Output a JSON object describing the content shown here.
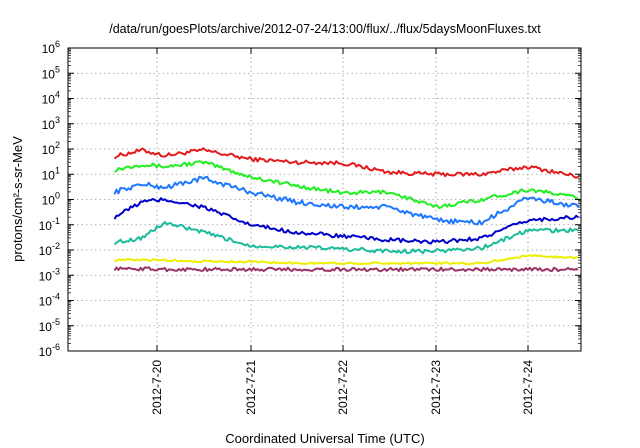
{
  "chart_data": {
    "type": "line",
    "title": "/data/run/goesPlots/archive/2012-07-24/13:00/flux/../flux/5daysMoonFluxes.txt",
    "xlabel": "Coordinated Universal Time (UTC)",
    "ylabel": "protons/cm²-s-sr-MeV",
    "y_scale": "log",
    "ylim": [
      1e-06,
      1000000.0
    ],
    "xlim_days": [
      "2012-07-19 13:00",
      "2012-07-24 13:00"
    ],
    "grid": true,
    "legend": "none",
    "x_ticks": [
      "2012-7-20",
      "2012-7-21",
      "2012-7-22",
      "2012-7-23",
      "2012-7-24"
    ],
    "y_ticks": [
      {
        "base": "10",
        "exp": "-6"
      },
      {
        "base": "10",
        "exp": "-5"
      },
      {
        "base": "10",
        "exp": "-4"
      },
      {
        "base": "10",
        "exp": "-3"
      },
      {
        "base": "10",
        "exp": "-2"
      },
      {
        "base": "10",
        "exp": "-1"
      },
      {
        "base": "10",
        "exp": "0"
      },
      {
        "base": "10",
        "exp": "1"
      },
      {
        "base": "10",
        "exp": "2"
      },
      {
        "base": "10",
        "exp": "3"
      },
      {
        "base": "10",
        "exp": "4"
      },
      {
        "base": "10",
        "exp": "5"
      },
      {
        "base": "10",
        "exp": "6"
      }
    ],
    "x": [
      "2012-07-19 13:00",
      "2012-07-19 20:00",
      "2012-07-20 02:00",
      "2012-07-20 12:00",
      "2012-07-21 00:00",
      "2012-07-21 12:00",
      "2012-07-22 00:00",
      "2012-07-22 12:00",
      "2012-07-23 00:00",
      "2012-07-23 12:00",
      "2012-07-24 00:00",
      "2012-07-24 13:00"
    ],
    "series": [
      {
        "color": "#e41a1c",
        "noise": 0.08,
        "values": [
          50,
          90,
          55,
          90,
          40,
          30,
          28,
          12,
          10,
          10,
          20,
          8
        ]
      },
      {
        "color": "#22ee22",
        "noise": 0.08,
        "values": [
          15,
          25,
          20,
          30,
          8,
          3.5,
          1.8,
          2.0,
          0.5,
          1.0,
          2.5,
          1.2
        ]
      },
      {
        "color": "#1f78ff",
        "noise": 0.1,
        "values": [
          2,
          4,
          3,
          7,
          2,
          0.8,
          0.5,
          0.5,
          0.15,
          0.12,
          1.2,
          0.5
        ]
      },
      {
        "color": "#0000cc",
        "noise": 0.08,
        "values": [
          0.2,
          0.8,
          1.0,
          0.5,
          0.1,
          0.05,
          0.035,
          0.025,
          0.02,
          0.03,
          0.15,
          0.2
        ]
      },
      {
        "color": "#1abc9c",
        "noise": 0.08,
        "values": [
          0.02,
          0.03,
          0.12,
          0.05,
          0.015,
          0.013,
          0.011,
          0.009,
          0.009,
          0.012,
          0.06,
          0.06
        ]
      },
      {
        "color": "#eeee00",
        "noise": 0.04,
        "values": [
          0.004,
          0.004,
          0.004,
          0.0035,
          0.0035,
          0.003,
          0.003,
          0.003,
          0.003,
          0.003,
          0.006,
          0.005
        ]
      },
      {
        "color": "#993366",
        "noise": 0.07,
        "values": [
          0.0018,
          0.0018,
          0.0017,
          0.0017,
          0.0017,
          0.0017,
          0.0017,
          0.0017,
          0.0017,
          0.0017,
          0.0017,
          0.0017
        ]
      }
    ]
  }
}
